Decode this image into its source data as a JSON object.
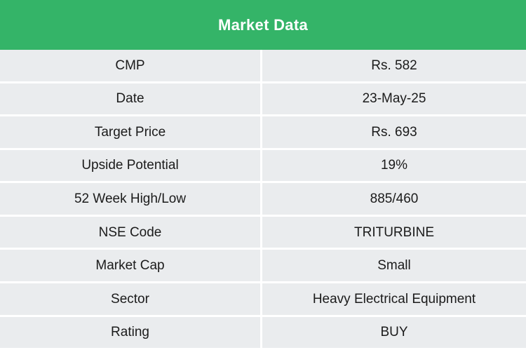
{
  "header": {
    "title": "Market Data"
  },
  "chart_data": {
    "type": "table",
    "title": "Market Data",
    "rows": [
      [
        "CMP",
        "Rs. 582"
      ],
      [
        "Date",
        "23-May-25"
      ],
      [
        "Target Price",
        "Rs. 693"
      ],
      [
        "Upside Potential",
        "19%"
      ],
      [
        "52 Week High/Low",
        "885/460"
      ],
      [
        "NSE Code",
        "TRITURBINE"
      ],
      [
        "Market Cap",
        "Small"
      ],
      [
        "Sector",
        "Heavy Electrical Equipment"
      ],
      [
        "Rating",
        "BUY"
      ]
    ]
  },
  "colors": {
    "header_bg": "#34b468",
    "header_text": "#ffffff",
    "row_bg": "#eaecee",
    "divider": "#ffffff",
    "text": "#1b1b1b"
  }
}
